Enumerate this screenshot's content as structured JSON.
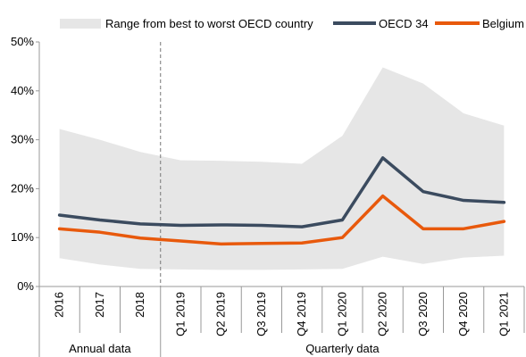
{
  "chart_data": {
    "type": "line",
    "categories": [
      "2016",
      "2017",
      "2018",
      "Q1 2019",
      "Q2 2019",
      "Q3 2019",
      "Q4 2019",
      "Q1 2020",
      "Q2 2020",
      "Q3 2020",
      "Q4 2020",
      "Q1 2021"
    ],
    "groups": [
      {
        "label": "Annual data",
        "count": 3
      },
      {
        "label": "Quarterly data",
        "count": 9
      }
    ],
    "ylim": [
      0,
      50
    ],
    "yticks": [
      "0%",
      "10%",
      "20%",
      "30%",
      "40%",
      "50%"
    ],
    "range_band": {
      "name": "Range from best to worst OECD country",
      "upper": [
        32.2,
        30.0,
        27.5,
        25.8,
        25.7,
        25.5,
        25.1,
        30.8,
        44.8,
        41.5,
        35.4,
        32.9
      ],
      "lower": [
        5.8,
        4.5,
        3.6,
        3.5,
        3.4,
        3.4,
        3.5,
        3.6,
        6.1,
        4.6,
        5.9,
        6.3
      ],
      "color": "#e6e6e6"
    },
    "series": [
      {
        "name": "OECD 34",
        "color": "#3b4b5f",
        "values": [
          14.6,
          13.6,
          12.8,
          12.5,
          12.6,
          12.5,
          12.2,
          13.6,
          26.3,
          19.4,
          17.6,
          17.2
        ]
      },
      {
        "name": "Belgium",
        "color": "#e8590c",
        "values": [
          11.8,
          11.1,
          9.9,
          9.3,
          8.7,
          8.8,
          8.9,
          10.0,
          18.5,
          11.8,
          11.8,
          13.3
        ]
      }
    ],
    "divider_after_index": 2
  }
}
